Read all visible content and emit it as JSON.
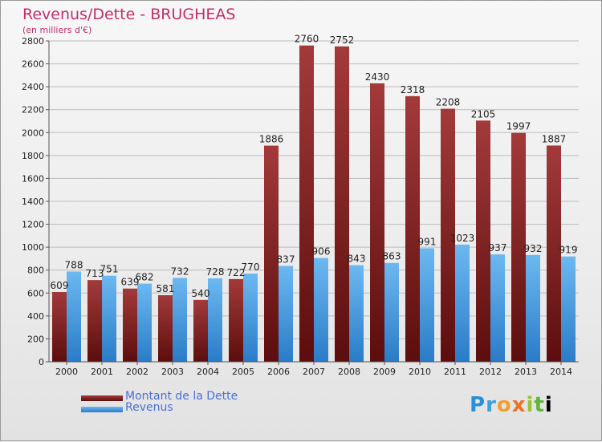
{
  "title": "Revenus/Dette - BRUGHEAS",
  "subtitle": "(en milliers d'€)",
  "logo_text": "Proxiti",
  "colors": {
    "debt": "#7a1e1e",
    "debt_light": "#a83a3a",
    "revenue": "#3c8fd8",
    "revenue_light": "#6cb8f0",
    "title": "#c0306a",
    "legend_text": "#4a70d8"
  },
  "chart_data": {
    "type": "bar",
    "title": "Revenus/Dette - BRUGHEAS",
    "subtitle": "(en milliers d'€)",
    "xlabel": "",
    "ylabel": "",
    "ylim": [
      0,
      2800
    ],
    "yticks": [
      0,
      200,
      400,
      600,
      800,
      1000,
      1200,
      1400,
      1600,
      1800,
      2000,
      2200,
      2400,
      2600,
      2800
    ],
    "grid": true,
    "legend_position": "bottom-left",
    "categories": [
      "2000",
      "2001",
      "2002",
      "2003",
      "2004",
      "2005",
      "2006",
      "2007",
      "2008",
      "2009",
      "2010",
      "2011",
      "2012",
      "2013",
      "2014"
    ],
    "series": [
      {
        "name": "Montant de la Dette",
        "color": "#7a1e1e",
        "values": [
          609,
          713,
          639,
          581,
          540,
          722,
          1886,
          2760,
          2752,
          2430,
          2318,
          2208,
          2105,
          1997,
          1887
        ]
      },
      {
        "name": "Revenus",
        "color": "#3c8fd8",
        "values": [
          788,
          751,
          682,
          732,
          728,
          770,
          837,
          906,
          843,
          863,
          991,
          1023,
          937,
          932,
          919
        ]
      }
    ]
  }
}
